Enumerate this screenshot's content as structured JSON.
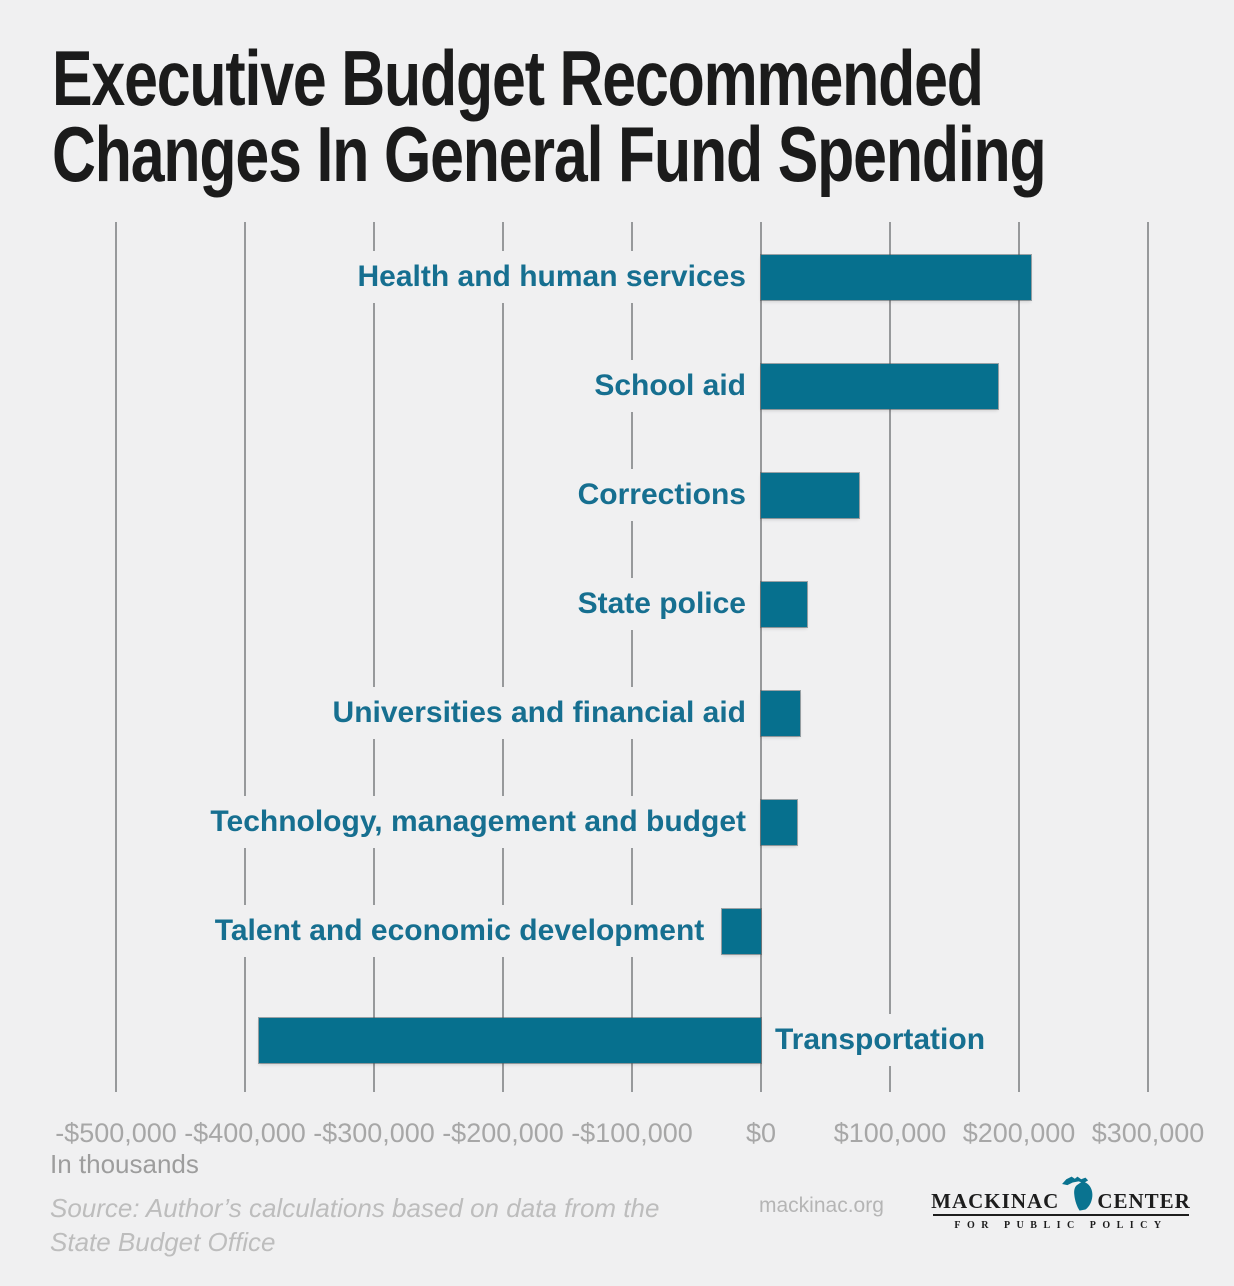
{
  "title": {
    "line1": "Executive Budget Recommended",
    "line2": "Changes In General Fund Spending"
  },
  "chart_data": {
    "type": "bar",
    "orientation": "horizontal",
    "title": "Executive Budget Recommended Changes In General Fund Spending",
    "unit_note": "In thousands",
    "categories": [
      "Health and human services",
      "School aid",
      "Corrections",
      "State police",
      "Universities and financial aid",
      "Technology, management and budget",
      "Talent and economic development",
      "Transportation"
    ],
    "values": [
      209000,
      184000,
      76000,
      36000,
      30000,
      28000,
      -30000,
      -389000
    ],
    "label_positions": [
      "axis-left",
      "axis-left",
      "axis-left",
      "axis-left",
      "axis-left",
      "axis-left",
      "bar-left",
      "zero-right"
    ],
    "x_ticks": [
      -500000,
      -400000,
      -300000,
      -200000,
      -100000,
      0,
      100000,
      200000,
      300000
    ],
    "x_tick_labels": [
      "-$500,000",
      "-$400,000",
      "-$300,000",
      "-$200,000",
      "-$100,000",
      "$0",
      "$100,000",
      "$200,000",
      "$300,000"
    ],
    "xlim": [
      -500000,
      300000
    ],
    "grid": true,
    "legend": false,
    "bar_color": "#06708E",
    "category_label_color": "#166F90",
    "gridline_color": "#97999b",
    "background_color": "#f0f0f1"
  },
  "footer": {
    "axis_note": "In thousands",
    "source_line1": "Source: Author’s calculations based on data from the",
    "source_line2": "State Budget Office",
    "website": "mackinac.org",
    "logo": {
      "word_left": "MACKINAC",
      "word_right": "CENTER",
      "subtitle": "FOR PUBLIC POLICY",
      "michigan_icon_color": "#0A7390"
    }
  }
}
